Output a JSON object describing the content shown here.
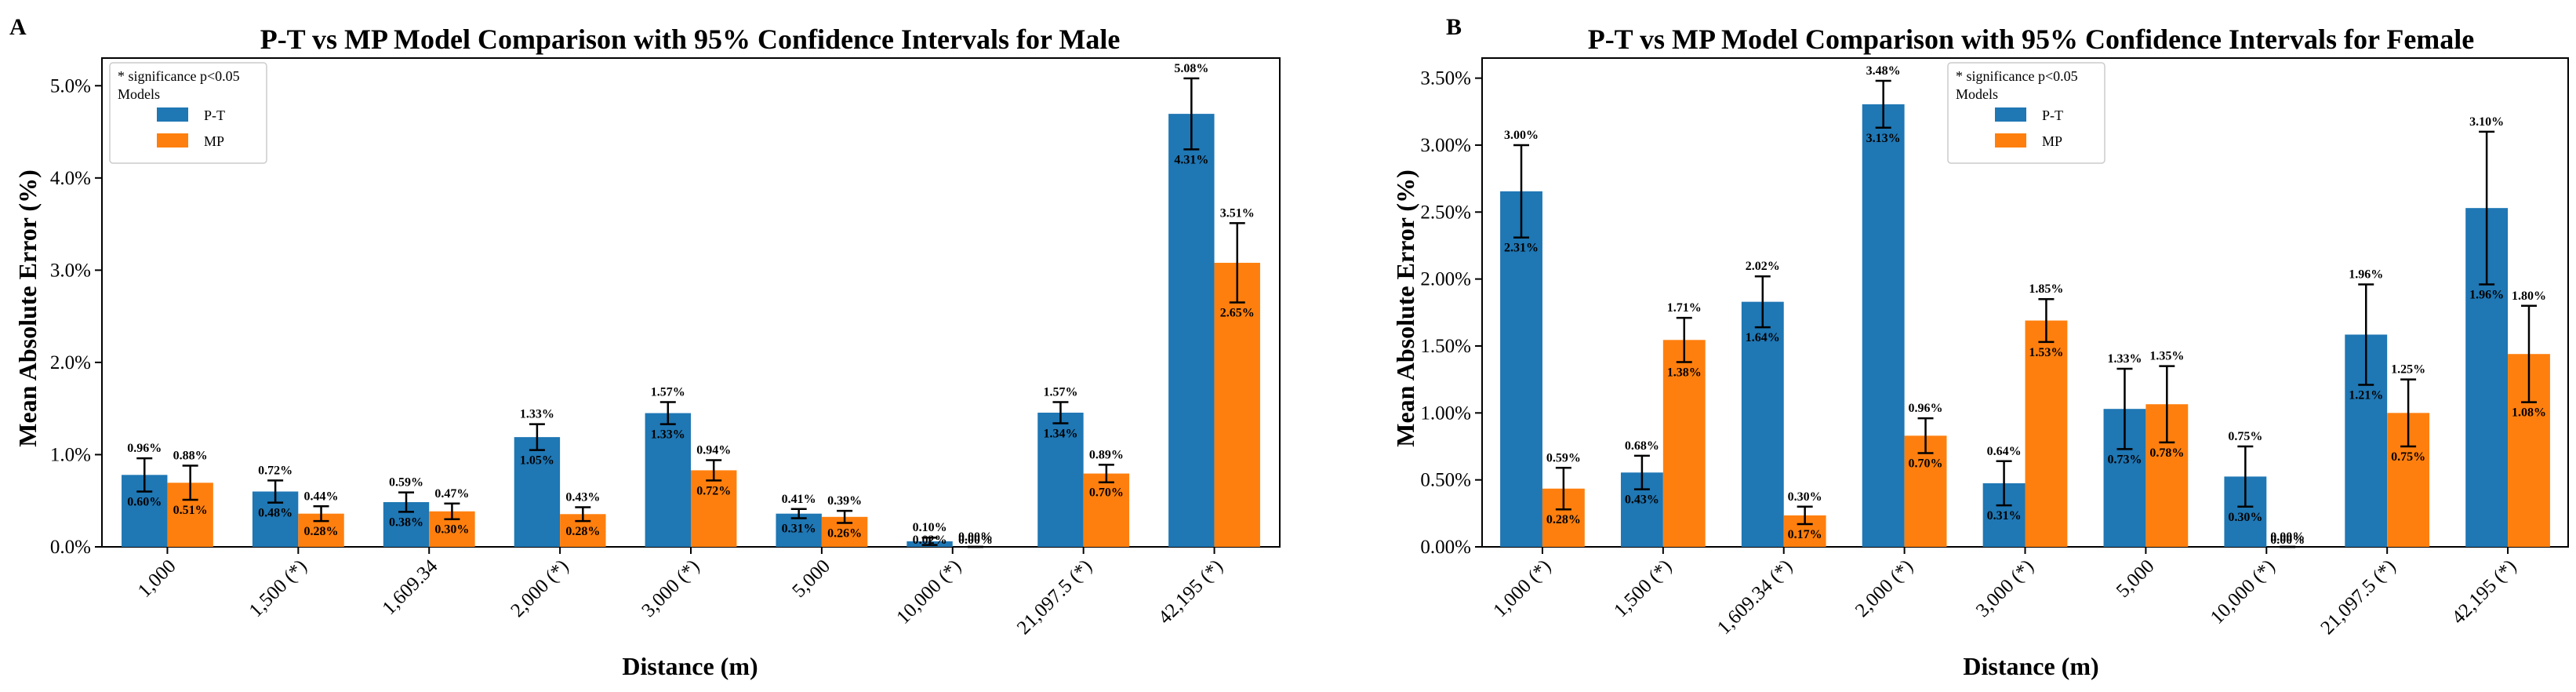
{
  "colors": {
    "pt": "#1f77b4",
    "mp": "#ff7f0e"
  },
  "chart_data": [
    {
      "type": "bar",
      "panel_label": "A",
      "title": "P-T vs MP Model Comparison with 95% Confidence Intervals for Male",
      "xlabel": "Distance (m)",
      "ylabel": "Mean Absolute Error (%)",
      "ylim": [
        0,
        5.3
      ],
      "yticks": [
        0,
        1,
        2,
        3,
        4,
        5
      ],
      "ytick_labels": [
        "0.0%",
        "1.0%",
        "2.0%",
        "3.0%",
        "4.0%",
        "5.0%"
      ],
      "categories": [
        "1,000",
        "1,500 (*)",
        "1,609.34",
        "2,000 (*)",
        "3,000 (*)",
        "5,000",
        "10,000 (*)",
        "21,097.5 (*)",
        "42,195 (*)"
      ],
      "legend": {
        "note": "* significance p<0.05",
        "title": "Models",
        "placement": "top-left"
      },
      "series": [
        {
          "name": "P-T",
          "color": "#1f77b4",
          "values": [
            0.78,
            0.6,
            0.485,
            1.19,
            1.45,
            0.36,
            0.06,
            1.455,
            4.695
          ],
          "ci_low": [
            0.6,
            0.48,
            0.38,
            1.05,
            1.33,
            0.31,
            0.02,
            1.34,
            4.31
          ],
          "ci_high": [
            0.96,
            0.72,
            0.59,
            1.33,
            1.57,
            0.41,
            0.1,
            1.57,
            5.08
          ],
          "ci_low_labels": [
            "0.60%",
            "0.48%",
            "0.38%",
            "1.05%",
            "1.33%",
            "0.31%",
            "0.02%",
            "1.34%",
            "4.31%"
          ],
          "ci_high_labels": [
            "0.96%",
            "0.72%",
            "0.59%",
            "1.33%",
            "1.57%",
            "0.41%",
            "0.10%",
            "1.57%",
            "5.08%"
          ]
        },
        {
          "name": "MP",
          "color": "#ff7f0e",
          "values": [
            0.695,
            0.36,
            0.385,
            0.355,
            0.83,
            0.325,
            0.0,
            0.795,
            3.08
          ],
          "ci_low": [
            0.51,
            0.28,
            0.3,
            0.28,
            0.72,
            0.26,
            0.0,
            0.7,
            2.65
          ],
          "ci_high": [
            0.88,
            0.44,
            0.47,
            0.43,
            0.94,
            0.39,
            0.0,
            0.89,
            3.51
          ],
          "ci_low_labels": [
            "0.51%",
            "0.28%",
            "0.30%",
            "0.28%",
            "0.72%",
            "0.26%",
            "0.00%",
            "0.70%",
            "2.65%"
          ],
          "ci_high_labels": [
            "0.88%",
            "0.44%",
            "0.47%",
            "0.43%",
            "0.94%",
            "0.39%",
            "0.00%",
            "0.89%",
            "3.51%"
          ]
        }
      ]
    },
    {
      "type": "bar",
      "panel_label": "B",
      "title": "P-T vs MP Model Comparison with 95% Confidence Intervals for Female",
      "xlabel": "Distance (m)",
      "ylabel": "Mean Absolute Error (%)",
      "ylim": [
        0,
        3.65
      ],
      "yticks": [
        0,
        0.5,
        1.0,
        1.5,
        2.0,
        2.5,
        3.0,
        3.5
      ],
      "ytick_labels": [
        "0.00%",
        "0.50%",
        "1.00%",
        "1.50%",
        "2.00%",
        "2.50%",
        "3.00%",
        "3.50%"
      ],
      "categories": [
        "1,000 (*)",
        "1,500 (*)",
        "1,609.34 (*)",
        "2,000 (*)",
        "3,000 (*)",
        "5,000",
        "10,000 (*)",
        "21,097.5 (*)",
        "42,195 (*)"
      ],
      "legend": {
        "note": "* significance p<0.05",
        "title": "Models",
        "placement": "top-center"
      },
      "series": [
        {
          "name": "P-T",
          "color": "#1f77b4",
          "values": [
            2.655,
            0.555,
            1.83,
            3.305,
            0.475,
            1.03,
            0.525,
            1.585,
            2.53
          ],
          "ci_low": [
            2.31,
            0.43,
            1.64,
            3.13,
            0.31,
            0.73,
            0.3,
            1.21,
            1.96
          ],
          "ci_high": [
            3.0,
            0.68,
            2.02,
            3.48,
            0.64,
            1.33,
            0.75,
            1.96,
            3.1
          ],
          "ci_low_labels": [
            "2.31%",
            "0.43%",
            "1.64%",
            "3.13%",
            "0.31%",
            "0.73%",
            "0.30%",
            "1.21%",
            "1.96%"
          ],
          "ci_high_labels": [
            "3.00%",
            "0.68%",
            "2.02%",
            "3.48%",
            "0.64%",
            "1.33%",
            "0.75%",
            "1.96%",
            "3.10%"
          ]
        },
        {
          "name": "MP",
          "color": "#ff7f0e",
          "values": [
            0.435,
            1.545,
            0.235,
            0.83,
            1.69,
            1.065,
            0.0,
            1.0,
            1.44
          ],
          "ci_low": [
            0.28,
            1.38,
            0.17,
            0.7,
            1.53,
            0.78,
            0.0,
            0.75,
            1.08
          ],
          "ci_high": [
            0.59,
            1.71,
            0.3,
            0.96,
            1.85,
            1.35,
            0.0,
            1.25,
            1.8
          ],
          "ci_low_labels": [
            "0.28%",
            "1.38%",
            "0.17%",
            "0.70%",
            "1.53%",
            "0.78%",
            "0.00%",
            "0.75%",
            "1.08%"
          ],
          "ci_high_labels": [
            "0.59%",
            "1.71%",
            "0.30%",
            "0.96%",
            "1.85%",
            "1.35%",
            "0.00%",
            "1.25%",
            "1.80%"
          ]
        }
      ]
    }
  ]
}
